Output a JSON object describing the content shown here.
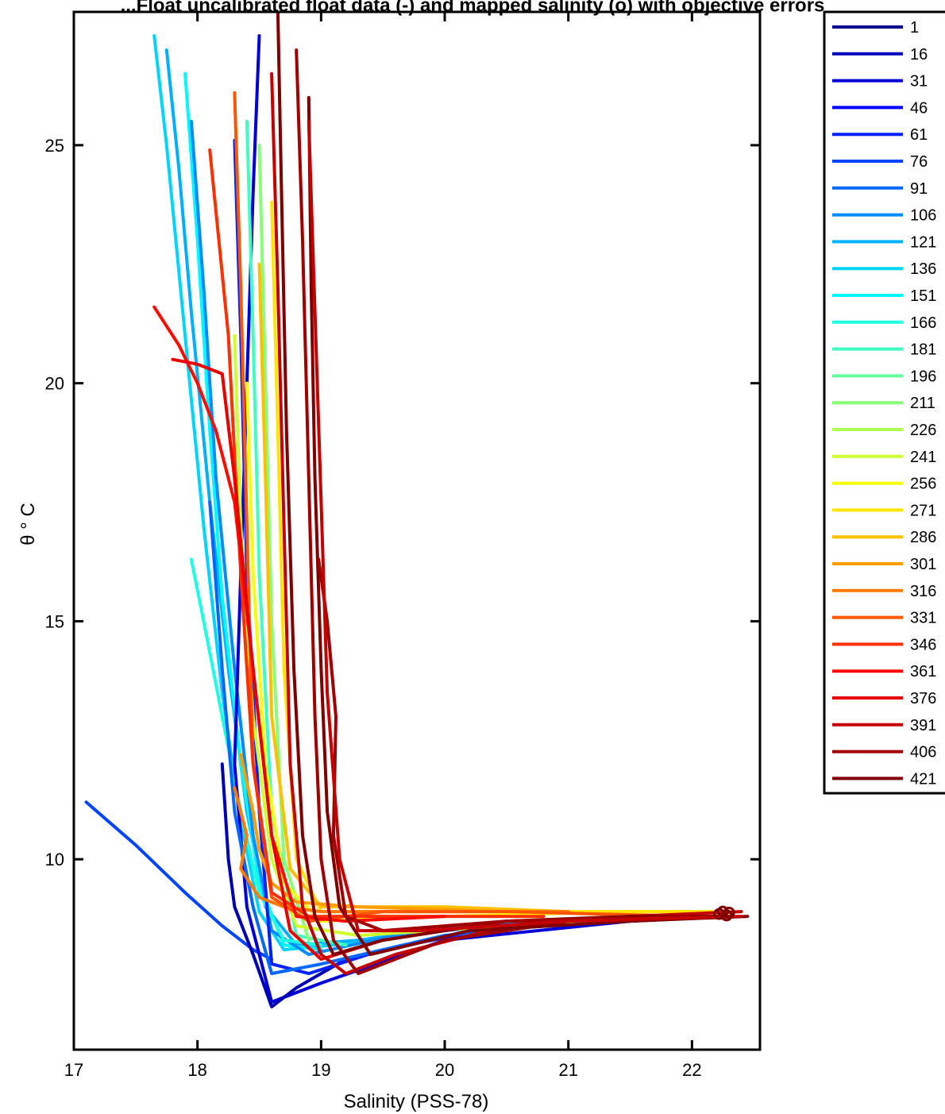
{
  "chart_data": {
    "type": "line",
    "title": "...Float uncalibrated float data (-) and mapped salinity (o) with objective errors",
    "xlabel": "Salinity (PSS-78)",
    "ylabel": "θ ° C",
    "xlim": [
      17,
      22.55
    ],
    "ylim": [
      6,
      27.8
    ],
    "xticks": [
      17,
      18,
      19,
      20,
      21,
      22
    ],
    "yticks": [
      10,
      15,
      20,
      25
    ],
    "xtick_labels": [
      "17",
      "18",
      "19",
      "20",
      "21",
      "22"
    ],
    "ytick_labels": [
      "10",
      "15",
      "20",
      "25"
    ],
    "grid": false,
    "legend_position": "outside-right",
    "colormap": "jet",
    "legend": [
      {
        "label": "1",
        "color": "#00008f"
      },
      {
        "label": "16",
        "color": "#0000b4"
      },
      {
        "label": "31",
        "color": "#0000d8"
      },
      {
        "label": "46",
        "color": "#0000fc"
      },
      {
        "label": "61",
        "color": "#0020ff"
      },
      {
        "label": "76",
        "color": "#0044ff"
      },
      {
        "label": "91",
        "color": "#0068ff"
      },
      {
        "label": "106",
        "color": "#008cff"
      },
      {
        "label": "121",
        "color": "#00b0ff"
      },
      {
        "label": "136",
        "color": "#00d4ff"
      },
      {
        "label": "151",
        "color": "#00f8ff"
      },
      {
        "label": "166",
        "color": "#1cffe2"
      },
      {
        "label": "181",
        "color": "#40ffbf"
      },
      {
        "label": "196",
        "color": "#64ff9b"
      },
      {
        "label": "211",
        "color": "#88ff77"
      },
      {
        "label": "226",
        "color": "#acff53"
      },
      {
        "label": "241",
        "color": "#d0ff2f"
      },
      {
        "label": "256",
        "color": "#f4ff0b"
      },
      {
        "label": "271",
        "color": "#ffe400"
      },
      {
        "label": "286",
        "color": "#ffc000"
      },
      {
        "label": "301",
        "color": "#ff9c00"
      },
      {
        "label": "316",
        "color": "#ff7800"
      },
      {
        "label": "331",
        "color": "#ff5400"
      },
      {
        "label": "346",
        "color": "#ff3000"
      },
      {
        "label": "361",
        "color": "#ff0c00"
      },
      {
        "label": "376",
        "color": "#e80000"
      },
      {
        "label": "391",
        "color": "#c40000"
      },
      {
        "label": "406",
        "color": "#a00000"
      },
      {
        "label": "421",
        "color": "#800000"
      }
    ],
    "series": [
      {
        "color": "#0044ff",
        "x": [
          17.1,
          17.5,
          17.9,
          18.2,
          18.45,
          18.6
        ],
        "y": [
          11.2,
          10.3,
          9.3,
          8.6,
          8.1,
          7.9
        ]
      },
      {
        "color": "#00d4ff",
        "x": [
          17.65,
          17.75,
          17.9,
          18.05,
          18.2,
          18.35,
          18.5,
          18.7,
          19.1,
          20.0,
          21.0,
          22.1
        ],
        "y": [
          27.3,
          25.0,
          21.0,
          17.0,
          13.5,
          10.8,
          8.9,
          8.1,
          8.2,
          8.6,
          8.7,
          8.8
        ]
      },
      {
        "color": "#00b0ff",
        "x": [
          17.75,
          17.85,
          17.95,
          18.1,
          18.25,
          18.4,
          18.55,
          18.8,
          19.3,
          20.2,
          21.2,
          22.2
        ],
        "y": [
          27.0,
          24.5,
          21.5,
          17.5,
          14.0,
          11.0,
          9.0,
          8.2,
          8.3,
          8.6,
          8.7,
          8.8
        ]
      },
      {
        "color": "#00f8ff",
        "x": [
          17.9,
          18.0,
          18.1,
          18.2,
          18.35,
          18.5,
          18.7,
          19.0
        ],
        "y": [
          26.5,
          23.0,
          19.0,
          15.5,
          12.0,
          9.5,
          8.2,
          8.1
        ]
      },
      {
        "color": "#008cff",
        "x": [
          17.95,
          18.05,
          18.15,
          18.3,
          18.45,
          18.6,
          18.9,
          19.6,
          20.8,
          22.0
        ],
        "y": [
          25.5,
          22.0,
          18.0,
          14.0,
          10.5,
          8.5,
          8.0,
          8.4,
          8.7,
          8.8
        ]
      },
      {
        "color": "#1cffe2",
        "x": [
          17.95,
          18.05,
          18.2,
          18.35,
          18.5,
          18.7,
          19.0
        ],
        "y": [
          16.3,
          15.0,
          13.0,
          11.0,
          9.3,
          8.3,
          8.2
        ]
      },
      {
        "color": "#0000d8",
        "x": [
          18.5,
          18.45,
          18.4,
          18.35,
          18.3,
          18.4,
          18.6,
          19.0,
          20.0,
          21.5,
          22.3
        ],
        "y": [
          27.3,
          24.0,
          20.0,
          16.0,
          12.0,
          9.0,
          7.0,
          7.4,
          8.3,
          8.7,
          8.8
        ]
      },
      {
        "color": "#0000b4",
        "x": [
          18.2,
          18.25,
          18.3,
          18.45,
          18.6,
          18.8,
          19.2,
          20.2,
          21.5,
          22.3
        ],
        "y": [
          12.0,
          10.0,
          9.0,
          8.0,
          6.9,
          7.3,
          7.9,
          8.5,
          8.7,
          8.8
        ]
      },
      {
        "color": "#0020ff",
        "x": [
          18.3,
          18.35,
          18.4,
          18.5,
          18.6,
          18.9,
          19.5,
          20.5,
          21.8
        ],
        "y": [
          25.1,
          21.0,
          16.0,
          11.0,
          7.8,
          7.6,
          8.1,
          8.6,
          8.8
        ]
      },
      {
        "color": "#0068ff",
        "x": [
          18.1,
          18.2,
          18.3,
          18.45,
          18.6,
          19.0,
          20.0,
          21.2,
          22.3
        ],
        "y": [
          17.5,
          14.0,
          11.0,
          9.0,
          7.6,
          7.8,
          8.4,
          8.7,
          8.8
        ]
      },
      {
        "color": "#40ffbf",
        "x": [
          18.4,
          18.45,
          18.5,
          18.6,
          18.8,
          19.2
        ],
        "y": [
          25.5,
          21.0,
          16.0,
          11.0,
          8.4,
          8.2
        ]
      },
      {
        "color": "#88ff77",
        "x": [
          18.5,
          18.55,
          18.6,
          18.7,
          18.9
        ],
        "y": [
          25.0,
          20.0,
          15.0,
          10.0,
          8.3
        ]
      },
      {
        "color": "#d0ff2f",
        "x": [
          18.3,
          18.35,
          18.45,
          18.6,
          18.8,
          19.3,
          20.5,
          22.0
        ],
        "y": [
          21.0,
          17.0,
          13.0,
          10.0,
          8.6,
          8.4,
          8.6,
          8.8
        ]
      },
      {
        "color": "#f4ff0b",
        "x": [
          18.4,
          18.45,
          18.55,
          18.7,
          19.0,
          20.0,
          21.5,
          22.3
        ],
        "y": [
          20.0,
          16.0,
          12.0,
          9.5,
          8.7,
          8.8,
          8.9,
          8.9
        ]
      },
      {
        "color": "#ffe400",
        "x": [
          18.6,
          18.65,
          18.7,
          18.8,
          19.0,
          20.0,
          21.0,
          22.2
        ],
        "y": [
          23.8,
          19.0,
          14.0,
          10.0,
          8.9,
          8.9,
          8.9,
          8.9
        ]
      },
      {
        "color": "#ffc000",
        "x": [
          18.5,
          18.55,
          18.6,
          18.75,
          19.0,
          20.0,
          21.0
        ],
        "y": [
          22.5,
          18.0,
          13.0,
          9.8,
          9.0,
          9.0,
          8.9
        ]
      },
      {
        "color": "#ff9c00",
        "x": [
          18.35,
          18.45,
          18.5,
          18.6,
          18.8,
          19.3,
          20.5
        ],
        "y": [
          12.2,
          11.0,
          10.2,
          9.5,
          9.1,
          9.0,
          8.9
        ]
      },
      {
        "color": "#ff7800",
        "x": [
          18.3,
          18.4,
          18.35,
          18.5,
          18.7,
          19.0,
          20.0,
          21.0
        ],
        "y": [
          11.5,
          10.5,
          9.8,
          9.2,
          9.0,
          8.9,
          8.9,
          8.9
        ]
      },
      {
        "color": "#ff5400",
        "x": [
          18.3,
          18.35,
          18.4,
          18.45,
          18.6,
          18.9,
          19.5,
          20.5,
          22.0
        ],
        "y": [
          26.1,
          22.0,
          17.0,
          12.0,
          9.2,
          8.7,
          8.9,
          8.9,
          8.8
        ]
      },
      {
        "color": "#ff3000",
        "x": [
          18.1,
          18.25,
          18.35,
          18.45,
          18.6,
          18.9,
          19.6,
          20.8
        ],
        "y": [
          24.9,
          21.0,
          16.0,
          12.0,
          9.3,
          8.8,
          8.8,
          8.8
        ]
      },
      {
        "color": "#ff0c00",
        "x": [
          17.65,
          17.85,
          18.0,
          18.15,
          18.3,
          18.45,
          18.6,
          18.8,
          19.2,
          20.0
        ],
        "y": [
          21.6,
          20.8,
          20.0,
          19.0,
          17.5,
          14.0,
          10.5,
          8.8,
          8.7,
          8.8
        ]
      },
      {
        "color": "#e80000",
        "x": [
          17.8,
          18.0,
          18.2,
          18.3,
          18.45,
          18.6,
          18.75,
          19.0,
          19.5,
          20.5,
          22.0
        ],
        "y": [
          20.5,
          20.4,
          20.2,
          18.0,
          14.0,
          10.5,
          8.5,
          7.9,
          8.3,
          8.7,
          8.8
        ]
      },
      {
        "color": "#c40000",
        "x": [
          18.6,
          18.65,
          18.7,
          18.75,
          18.85,
          19.0,
          19.2,
          19.6,
          20.5,
          21.5,
          22.4
        ],
        "y": [
          26.5,
          22.0,
          17.0,
          12.0,
          9.0,
          8.0,
          7.6,
          8.0,
          8.6,
          8.8,
          8.9
        ]
      },
      {
        "color": "#a00000",
        "x": [
          18.8,
          18.85,
          18.9,
          18.95,
          19.0,
          19.1,
          19.3,
          20.0,
          21.0,
          22.2
        ],
        "y": [
          27.0,
          23.0,
          18.0,
          13.0,
          10.0,
          8.3,
          7.6,
          8.3,
          8.7,
          8.8
        ]
      },
      {
        "color": "#800000",
        "x": [
          18.65,
          18.68,
          18.72,
          18.78,
          18.85,
          18.95,
          19.1,
          19.5,
          20.5,
          21.5,
          22.3
        ],
        "y": [
          27.8,
          24.0,
          19.0,
          14.0,
          10.5,
          8.8,
          8.0,
          8.3,
          8.7,
          8.8,
          8.8
        ]
      },
      {
        "color": "#800000",
        "x": [
          18.9,
          18.92,
          18.95,
          19.0,
          19.05,
          19.15,
          19.4,
          20.2,
          21.5,
          22.45
        ],
        "y": [
          26.0,
          22.0,
          18.0,
          14.0,
          11.0,
          9.0,
          8.0,
          8.5,
          8.7,
          8.8
        ]
      },
      {
        "color": "#a00000",
        "x": [
          18.98,
          19.05,
          19.12,
          19.1,
          19.2,
          19.5,
          20.5,
          22.0
        ],
        "y": [
          16.3,
          15.0,
          13.0,
          10.5,
          8.8,
          8.5,
          8.7,
          8.8
        ]
      },
      {
        "color": "#c40000",
        "x": [
          18.9,
          18.95,
          19.0,
          19.05,
          19.15,
          19.3,
          19.8,
          21.0,
          22.4
        ],
        "y": [
          25.5,
          21.5,
          17.5,
          13.5,
          10.0,
          8.5,
          8.5,
          8.7,
          8.8
        ]
      }
    ],
    "markers": {
      "color": "#800000",
      "x": [
        22.22,
        22.25,
        22.28,
        22.3
      ],
      "y": [
        8.85,
        8.9,
        8.82,
        8.88
      ]
    }
  }
}
